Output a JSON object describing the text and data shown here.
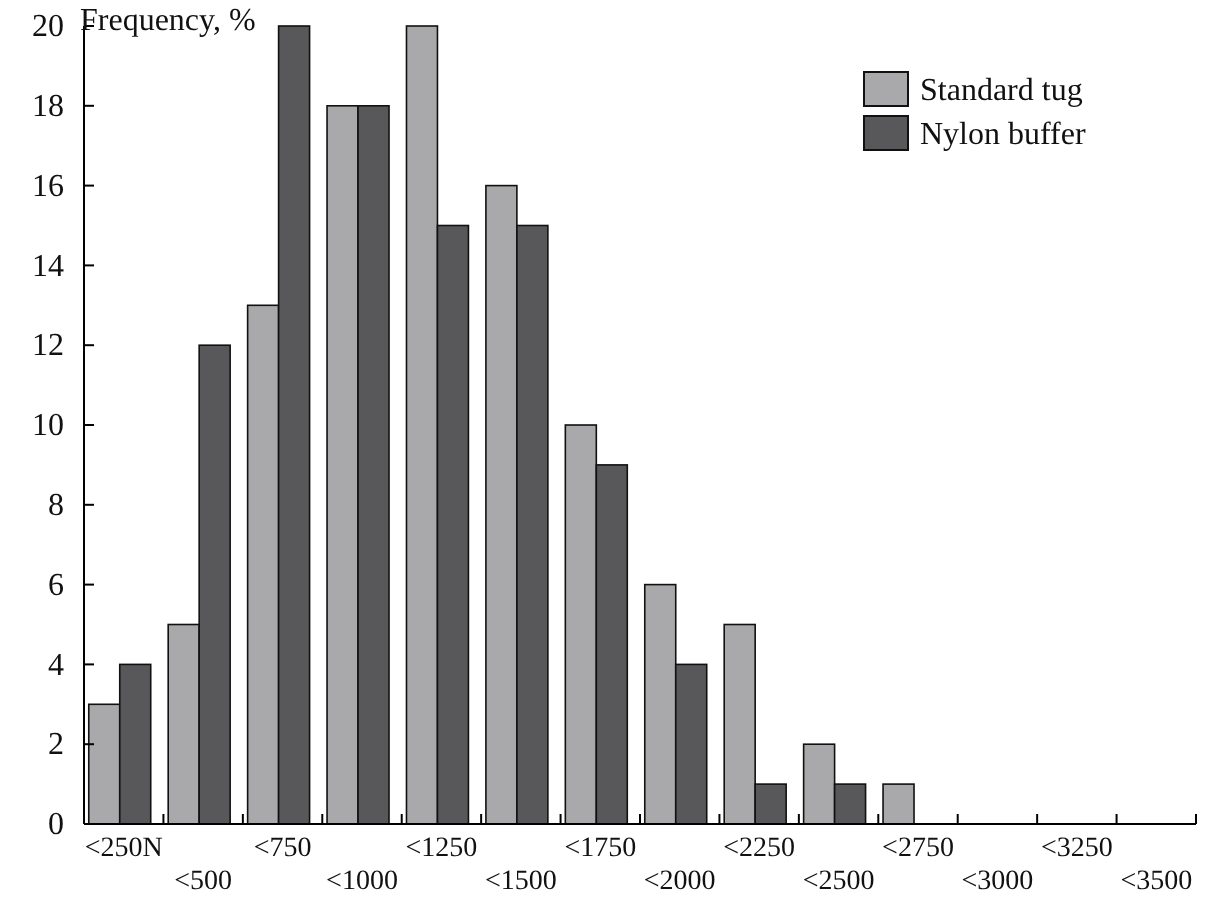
{
  "chart_data": {
    "type": "bar",
    "ylabel": "Frequency, %",
    "categories": [
      "<250N",
      "<500",
      "<750",
      "<1000",
      "<1250",
      "<1500",
      "<1750",
      "<2000",
      "<2250",
      "<2500",
      "<2750",
      "<3000",
      "<3250",
      "<3500"
    ],
    "series": [
      {
        "name": "Standard tug",
        "color": "#a9a9ab",
        "values": [
          3,
          5,
          13,
          18,
          20,
          16,
          10,
          6,
          5,
          2,
          1,
          0,
          0,
          0
        ]
      },
      {
        "name": "Nylon buffer",
        "color": "#58585a",
        "values": [
          4,
          12,
          20,
          18,
          15,
          15,
          9,
          4,
          1,
          1,
          0,
          0,
          0,
          0
        ]
      }
    ],
    "ylim": [
      0,
      20
    ],
    "yticks": [
      0,
      2,
      4,
      6,
      8,
      10,
      12,
      14,
      16,
      18,
      20
    ],
    "grid": false,
    "legend": "top right"
  }
}
